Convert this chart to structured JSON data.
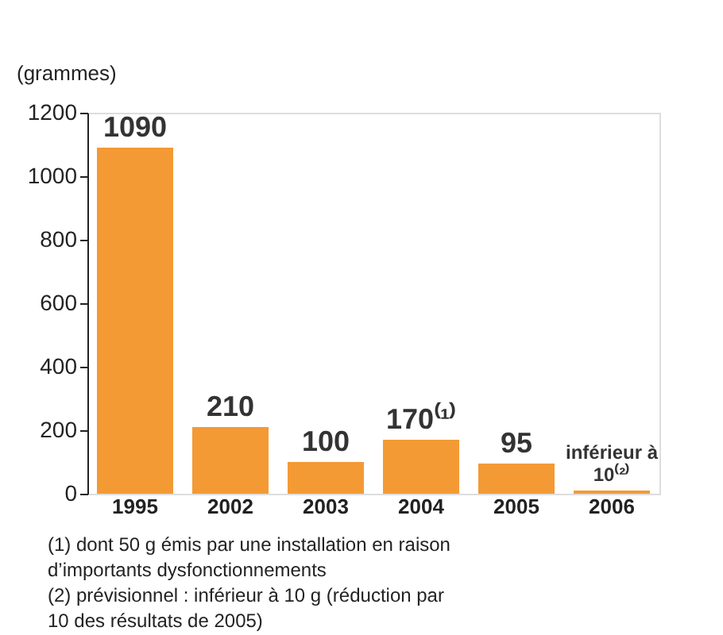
{
  "chart_data": {
    "type": "bar",
    "ylabel": "(grammes)",
    "categories": [
      "1995",
      "2002",
      "2003",
      "2004",
      "2005",
      "2006"
    ],
    "values": [
      1090,
      210,
      100,
      170,
      95,
      10
    ],
    "value_labels": [
      "1090",
      "210",
      "100",
      "170⁽¹⁾",
      "95",
      "inférieur à 10⁽²⁾"
    ],
    "color": "#f39a35",
    "ylim": [
      0,
      1200
    ],
    "yticks": [
      0,
      200,
      400,
      600,
      800,
      1000,
      1200
    ],
    "grid": false,
    "annotations": [
      "(1) dont 50 g émis par une installation en raison d’importants dysfonctionnements",
      "(2) prévisionnel : inférieur à 10 g (réduction par 10 des résultats de 2005)"
    ]
  }
}
